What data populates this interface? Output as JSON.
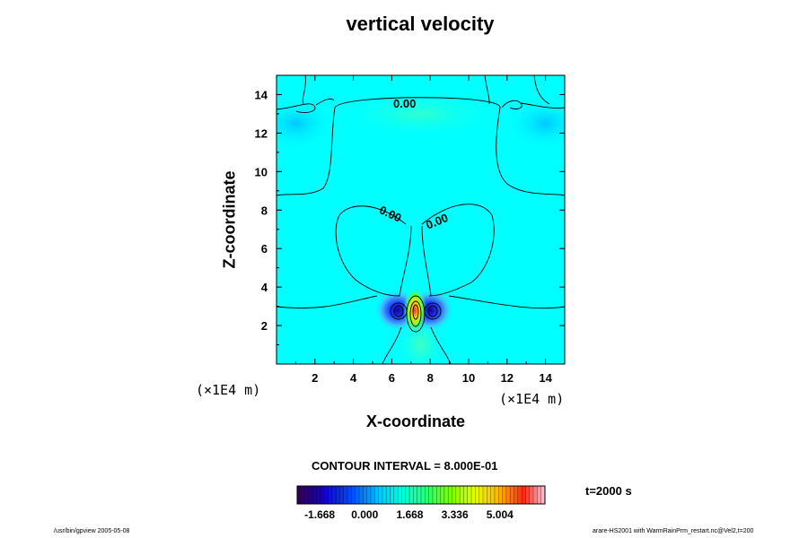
{
  "title": "vertical velocity",
  "contour_interval_text": "CONTOUR INTERVAL = 8.000E-01",
  "time_text": "t=2000 s",
  "footer_left": "/usr/bin/gpview 2005-05-08",
  "footer_right": "arare-HS2001 with WarmRainPrm_restart.nc@Vel2,t=200",
  "colors": {
    "background": "#00ffff",
    "plot_frame": "#000000"
  },
  "chart_data": {
    "type": "heatmap",
    "title": "vertical velocity",
    "xlabel": "X-coordinate",
    "ylabel": "Z-coordinate",
    "x_unit": "(×1E4 m)",
    "y_unit": "(×1E4 m)",
    "xlim": [
      0,
      15
    ],
    "ylim": [
      0,
      15
    ],
    "x_ticks": [
      2,
      4,
      6,
      8,
      10,
      12,
      14
    ],
    "y_ticks": [
      2,
      4,
      6,
      8,
      10,
      12,
      14
    ],
    "contour_labels": [
      "0.00",
      "0.00",
      "0.00"
    ],
    "colorbar": {
      "tick_labels": [
        "-1.668",
        "0.000",
        "1.668",
        "3.336",
        "5.004"
      ],
      "range": [
        -2.502,
        6.672
      ]
    },
    "features": [
      {
        "kind": "updraft",
        "x": 7.2,
        "z": 2.8,
        "value": 5.5
      },
      {
        "kind": "downdraft",
        "x": 6.3,
        "z": 2.8,
        "value": -2.0
      },
      {
        "kind": "downdraft",
        "x": 8.0,
        "z": 2.8,
        "value": -2.0
      },
      {
        "kind": "weak_downdraft",
        "x": 1.0,
        "z": 12.5,
        "value": -0.6
      },
      {
        "kind": "weak_downdraft",
        "x": 14.0,
        "z": 12.5,
        "value": -0.6
      },
      {
        "kind": "weak_updraft",
        "x": 7.5,
        "z": 1.0,
        "value": 0.6
      }
    ]
  }
}
